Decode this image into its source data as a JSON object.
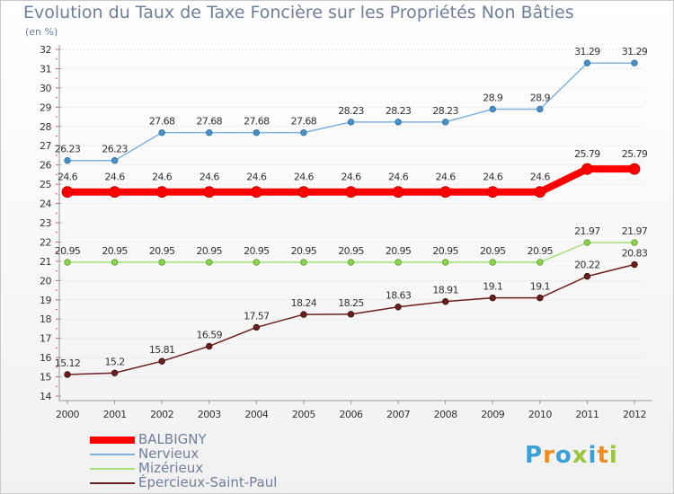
{
  "chart_data": {
    "type": "line",
    "title": "Evolution du Taux de Taxe Foncière sur les Propriétés Non Bâties",
    "unit_label": "(en %)",
    "x": [
      "2000",
      "2001",
      "2002",
      "2003",
      "2004",
      "2005",
      "2006",
      "2007",
      "2008",
      "2009",
      "2010",
      "2011",
      "2012"
    ],
    "ylim": [
      14,
      32
    ],
    "yticks": [
      14,
      15,
      16,
      17,
      18,
      19,
      20,
      21,
      22,
      23,
      24,
      25,
      26,
      27,
      28,
      29,
      30,
      31,
      32
    ],
    "grid": "horizontal dotted",
    "legend_position": "bottom-left",
    "series": [
      {
        "name": "BALBIGNY",
        "color": "#ff0000",
        "values": [
          24.6,
          24.6,
          24.6,
          24.6,
          24.6,
          24.6,
          24.6,
          24.6,
          24.6,
          24.6,
          24.6,
          25.79,
          25.79
        ],
        "labels": [
          "24.6",
          "24.6",
          "24.6",
          "24.6",
          "24.6",
          "24.6",
          "24.6",
          "24.6",
          "24.6",
          "24.6",
          "24.6",
          "25.79",
          "25.79"
        ]
      },
      {
        "name": "Nervieux",
        "color": "#7fb2de",
        "values": [
          26.23,
          26.23,
          27.68,
          27.68,
          27.68,
          27.68,
          28.23,
          28.23,
          28.23,
          28.9,
          28.9,
          31.29,
          31.29
        ],
        "labels": [
          "26.23",
          "26.23",
          "27.68",
          "27.68",
          "27.68",
          "27.68",
          "28.23",
          "28.23",
          "28.23",
          "28.9",
          "28.9",
          "31.29",
          "31.29"
        ]
      },
      {
        "name": "Mizérieux",
        "color": "#a6e07a",
        "values": [
          20.95,
          20.95,
          20.95,
          20.95,
          20.95,
          20.95,
          20.95,
          20.95,
          20.95,
          20.95,
          20.95,
          21.97,
          21.97
        ],
        "labels": [
          "20.95",
          "20.95",
          "20.95",
          "20.95",
          "20.95",
          "20.95",
          "20.95",
          "20.95",
          "20.95",
          "20.95",
          "20.95",
          "21.97",
          "21.97"
        ]
      },
      {
        "name": "Épercieux-Saint-Paul",
        "color": "#6b1f1f",
        "values": [
          15.12,
          15.2,
          15.81,
          16.59,
          17.57,
          18.24,
          18.25,
          18.63,
          18.91,
          19.1,
          19.1,
          20.22,
          20.83
        ],
        "labels": [
          "15.12",
          "15.2",
          "15.81",
          "16.59",
          "17.57",
          "18.24",
          "18.25",
          "18.63",
          "18.91",
          "19.1",
          "19.1",
          "20.22",
          "20.83"
        ]
      }
    ]
  },
  "logo": {
    "text": "Proxiti",
    "colors": [
      "#3aa0d8",
      "#f08a1c",
      "#3aa0d8",
      "#9bc53d",
      "#3aa0d8",
      "#f08a1c",
      "#9bc53d"
    ]
  }
}
